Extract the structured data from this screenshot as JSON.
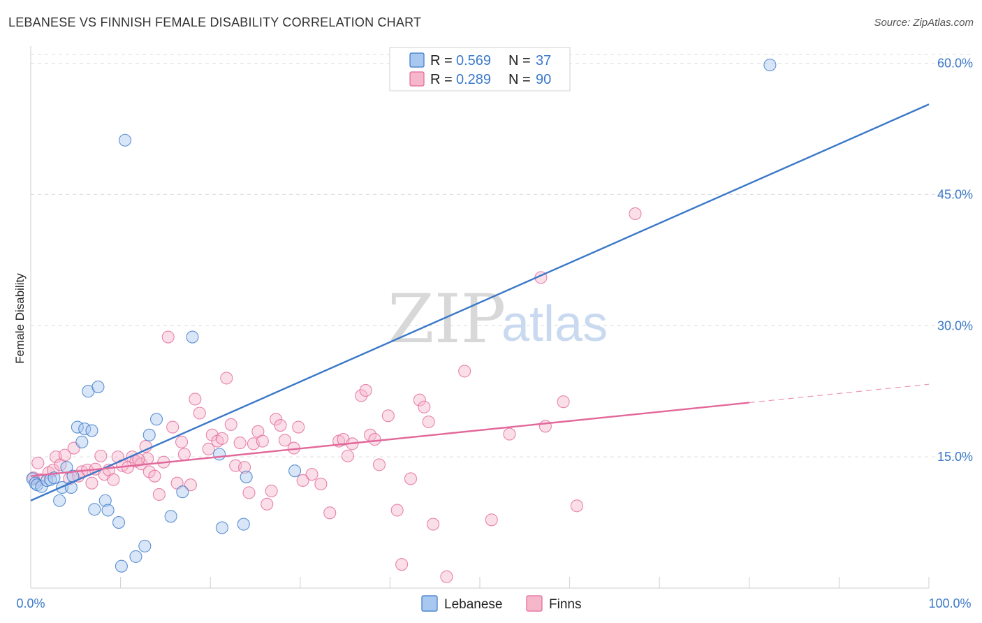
{
  "header": {
    "title": "LEBANESE VS FINNISH FEMALE DISABILITY CORRELATION CHART",
    "source": "Source: ZipAtlas.com"
  },
  "watermark": {
    "zip": "ZIP",
    "atlas": "atlas"
  },
  "legend": {
    "rows": [
      {
        "r_label": "R = ",
        "r_value": "0.569",
        "n_label": "N = ",
        "n_value": "37",
        "color": "#a9c8f0"
      },
      {
        "r_label": "R = ",
        "r_value": "0.289",
        "n_label": "N = ",
        "n_value": "90",
        "color": "#f7b7cb"
      }
    ]
  },
  "bottom_legend": {
    "lebanese": "Lebanese",
    "finns": "Finns"
  },
  "chart_data": {
    "type": "scatter",
    "title": "LEBANESE VS FINNISH FEMALE DISABILITY CORRELATION CHART",
    "xlabel": "",
    "ylabel": "Female Disability",
    "xlim": [
      0,
      100
    ],
    "ylim": [
      0,
      61
    ],
    "x_tick_labels": [
      "0.0%",
      "100.0%"
    ],
    "y_ticks": [
      15,
      30,
      45,
      60
    ],
    "y_tick_labels": [
      "15.0%",
      "30.0%",
      "45.0%",
      "60.0%"
    ],
    "colors": {
      "lebanese": "#3a78c8",
      "lebanese_fill": "#a9c8f0",
      "finns": "#e2679a",
      "finns_fill": "#f7b7cb"
    },
    "series": [
      {
        "name": "Lebanese",
        "r": 0.569,
        "n": 37,
        "trend": {
          "x0": 0,
          "y0": 10.0,
          "x1": 100,
          "y1": 55.3
        },
        "points": [
          [
            0.2,
            12.5
          ],
          [
            0.5,
            12.0
          ],
          [
            0.7,
            11.8
          ],
          [
            1.2,
            11.6
          ],
          [
            1.8,
            12.3
          ],
          [
            2.2,
            12.4
          ],
          [
            2.6,
            12.6
          ],
          [
            3.2,
            10.0
          ],
          [
            3.5,
            11.5
          ],
          [
            4.0,
            13.8
          ],
          [
            4.5,
            11.5
          ],
          [
            4.7,
            12.8
          ],
          [
            5.2,
            18.4
          ],
          [
            5.7,
            16.7
          ],
          [
            6.0,
            18.2
          ],
          [
            6.4,
            22.5
          ],
          [
            6.8,
            18.0
          ],
          [
            7.1,
            9.0
          ],
          [
            7.5,
            23.0
          ],
          [
            8.3,
            10.0
          ],
          [
            8.6,
            8.9
          ],
          [
            9.8,
            7.5
          ],
          [
            10.1,
            2.5
          ],
          [
            10.5,
            51.2
          ],
          [
            11.7,
            3.6
          ],
          [
            12.7,
            4.8
          ],
          [
            13.2,
            17.5
          ],
          [
            14.0,
            19.3
          ],
          [
            15.6,
            8.2
          ],
          [
            16.9,
            11.0
          ],
          [
            18.0,
            28.7
          ],
          [
            21.0,
            15.3
          ],
          [
            21.3,
            6.9
          ],
          [
            23.7,
            7.3
          ],
          [
            24.0,
            12.7
          ],
          [
            29.4,
            13.4
          ],
          [
            82.3,
            59.8
          ]
        ]
      },
      {
        "name": "Finns",
        "r": 0.289,
        "n": 90,
        "trend": {
          "x0": 0,
          "y0": 12.8,
          "x1": 80,
          "y1": 21.2,
          "dash_x1": 100,
          "dash_y1": 23.3
        },
        "points": [
          [
            0.3,
            12.6
          ],
          [
            1.0,
            12.4
          ],
          [
            2.0,
            13.2
          ],
          [
            2.5,
            13.5
          ],
          [
            2.8,
            15.0
          ],
          [
            3.3,
            14.1
          ],
          [
            3.8,
            15.2
          ],
          [
            4.3,
            12.5
          ],
          [
            4.8,
            16.0
          ],
          [
            5.3,
            12.8
          ],
          [
            5.7,
            13.3
          ],
          [
            6.3,
            13.5
          ],
          [
            6.8,
            12.0
          ],
          [
            7.2,
            13.6
          ],
          [
            7.8,
            15.1
          ],
          [
            8.2,
            13.0
          ],
          [
            8.7,
            13.5
          ],
          [
            9.2,
            12.4
          ],
          [
            9.7,
            15.0
          ],
          [
            10.2,
            14.0
          ],
          [
            10.8,
            13.8
          ],
          [
            11.3,
            15.0
          ],
          [
            11.7,
            14.5
          ],
          [
            12.3,
            14.2
          ],
          [
            12.8,
            16.2
          ],
          [
            13.2,
            13.3
          ],
          [
            13.8,
            12.8
          ],
          [
            14.3,
            10.7
          ],
          [
            14.8,
            14.4
          ],
          [
            15.3,
            28.7
          ],
          [
            15.8,
            18.4
          ],
          [
            16.3,
            12.0
          ],
          [
            16.8,
            16.7
          ],
          [
            17.1,
            15.3
          ],
          [
            17.8,
            11.8
          ],
          [
            18.3,
            21.6
          ],
          [
            18.8,
            20.0
          ],
          [
            19.8,
            15.9
          ],
          [
            20.2,
            17.5
          ],
          [
            20.8,
            16.8
          ],
          [
            21.3,
            17.1
          ],
          [
            21.8,
            24.0
          ],
          [
            22.3,
            18.7
          ],
          [
            22.8,
            14.0
          ],
          [
            23.3,
            16.6
          ],
          [
            23.8,
            13.8
          ],
          [
            24.3,
            10.9
          ],
          [
            24.8,
            16.5
          ],
          [
            25.3,
            17.9
          ],
          [
            25.8,
            16.8
          ],
          [
            26.3,
            9.6
          ],
          [
            26.8,
            11.1
          ],
          [
            27.3,
            19.3
          ],
          [
            27.8,
            18.6
          ],
          [
            28.3,
            16.9
          ],
          [
            29.3,
            16.0
          ],
          [
            29.8,
            18.4
          ],
          [
            30.3,
            12.3
          ],
          [
            31.3,
            13.0
          ],
          [
            32.3,
            11.9
          ],
          [
            33.3,
            8.6
          ],
          [
            34.3,
            16.8
          ],
          [
            34.8,
            17.0
          ],
          [
            35.3,
            15.1
          ],
          [
            35.8,
            16.5
          ],
          [
            36.8,
            22.0
          ],
          [
            37.3,
            22.6
          ],
          [
            37.8,
            17.5
          ],
          [
            38.3,
            17.0
          ],
          [
            38.8,
            14.1
          ],
          [
            39.8,
            19.7
          ],
          [
            40.8,
            8.9
          ],
          [
            41.3,
            2.7
          ],
          [
            42.3,
            12.5
          ],
          [
            43.3,
            21.5
          ],
          [
            43.8,
            20.7
          ],
          [
            44.3,
            19.0
          ],
          [
            44.8,
            7.3
          ],
          [
            46.3,
            1.3
          ],
          [
            48.3,
            24.8
          ],
          [
            51.3,
            7.8
          ],
          [
            53.3,
            17.6
          ],
          [
            56.8,
            35.5
          ],
          [
            57.3,
            18.5
          ],
          [
            59.3,
            21.3
          ],
          [
            60.8,
            9.4
          ],
          [
            67.3,
            42.8
          ],
          [
            0.8,
            14.3
          ],
          [
            13.0,
            14.8
          ],
          [
            12.0,
            14.7
          ]
        ]
      }
    ]
  }
}
